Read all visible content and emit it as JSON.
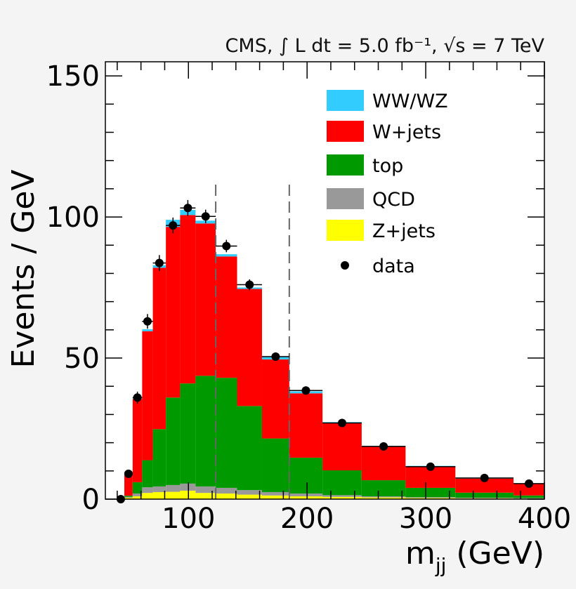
{
  "chart_data": {
    "type": "bar",
    "stacked": true,
    "title": "CMS, ∫ L dt = 5.0 fb⁻¹, √s = 7 TeV",
    "xlabel": "m_jj (GeV)",
    "xlabel_main": "m",
    "xlabel_sub": "jj",
    "xlabel_unit": " (GeV)",
    "ylabel": "Events / GeV",
    "xlim": [
      30,
      400
    ],
    "ylim": [
      0,
      155
    ],
    "xticks": [
      100,
      200,
      300,
      400
    ],
    "yticks": [
      0,
      50,
      100,
      150
    ],
    "xtick_labels": [
      "100",
      "200",
      "300",
      "400"
    ],
    "ytick_labels": [
      "0",
      "50",
      "100",
      "150"
    ],
    "legend_position": "top-right",
    "cut_lines": [
      123,
      185
    ],
    "bin_edges": [
      46,
      53,
      61,
      70,
      81,
      93,
      106,
      123,
      141,
      162,
      185,
      213,
      246,
      283,
      325,
      374,
      400
    ],
    "series": [
      {
        "name": "Z+jets",
        "color": "#ffff00",
        "values": [
          0.5,
          1,
          2.2,
          2.5,
          2.6,
          3,
          2.2,
          2,
          1.6,
          1.3,
          1,
          0.8,
          0.6,
          0.4,
          0.3,
          0.2
        ]
      },
      {
        "name": "QCD",
        "color": "#999999",
        "values": [
          0.3,
          1,
          2,
          2,
          2.4,
          2.5,
          2.3,
          2,
          1.6,
          1.2,
          1,
          0.6,
          0.4,
          0.3,
          0.2,
          0.2
        ]
      },
      {
        "name": "top",
        "color": "#009900",
        "values": [
          0.4,
          4,
          9.6,
          20.3,
          31,
          35.5,
          39.2,
          39,
          29.8,
          19,
          12.7,
          8.8,
          5.7,
          3.3,
          1.8,
          0.9
        ]
      },
      {
        "name": "W+jets",
        "color": "#ff0000",
        "values": [
          8.3,
          29.5,
          45.7,
          57.2,
          60.5,
          59.7,
          54,
          43,
          41.5,
          28,
          22.8,
          16.8,
          12,
          7.7,
          5,
          4.2
        ]
      },
      {
        "name": "WW/WZ",
        "color": "#33ccff",
        "values": [
          0.2,
          0.3,
          0.7,
          0.9,
          2.5,
          1.8,
          1,
          0.8,
          0.5,
          1,
          0.7,
          0.3,
          0.2,
          0.1,
          0.1,
          0.1
        ]
      }
    ],
    "data_points": {
      "name": "data",
      "x": [
        43,
        49.5,
        57,
        65.5,
        75.5,
        87,
        99.5,
        114.5,
        132,
        151.5,
        173.5,
        199,
        229.5,
        264.5,
        304,
        349.5,
        387
      ],
      "y": [
        0,
        9,
        36,
        63,
        83.7,
        97,
        103.2,
        100.2,
        89.7,
        76,
        50.5,
        38.5,
        27,
        18.7,
        11.5,
        7.5,
        5.5
      ],
      "yerr": [
        0,
        1.1,
        2.1,
        2.6,
        2.8,
        2.8,
        2.8,
        2.4,
        2.2,
        1.9,
        1.5,
        1.2,
        0.9,
        0.7,
        0.5,
        0.4,
        0.5
      ]
    },
    "legend": [
      "WW/WZ",
      "W+jets",
      "top",
      "QCD",
      "Z+jets",
      "data"
    ]
  }
}
